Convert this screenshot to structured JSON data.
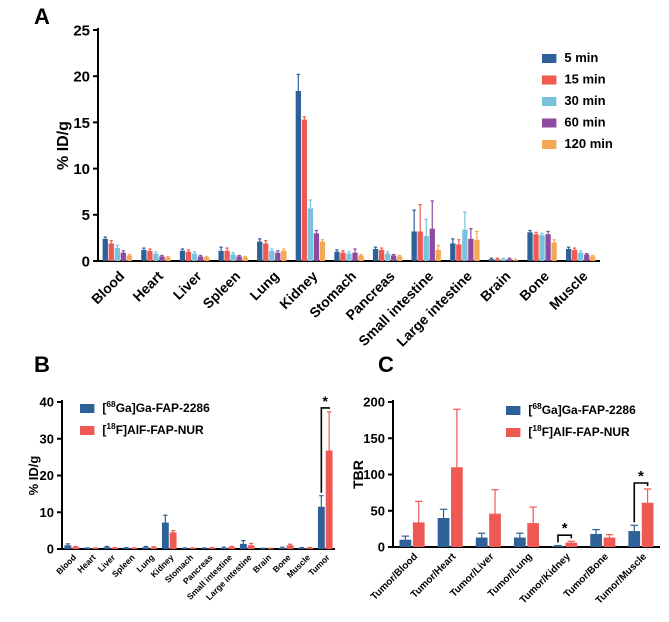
{
  "colors": {
    "c5": "#2e6197",
    "c15": "#ee5a53",
    "c30": "#79c2dd",
    "c60": "#8e4a9e",
    "c120": "#f3a856",
    "ga": "#2e6197",
    "alf": "#ee5a53"
  },
  "chart_data": [
    {
      "panel": "A",
      "type": "bar",
      "ylabel": "% ID/g",
      "ylim": [
        0,
        25
      ],
      "yticks": [
        0,
        5,
        10,
        15,
        20,
        25
      ],
      "legend_position": "top-right",
      "categories": [
        "Blood",
        "Heart",
        "Liver",
        "Spleen",
        "Lung",
        "Kidney",
        "Stomach",
        "Pancreas",
        "Small intestine",
        "Large intestine",
        "Brain",
        "Bone",
        "Muscle"
      ],
      "series": [
        {
          "name": "5 min",
          "color": "#2e6197",
          "values": [
            2.4,
            1.2,
            1.1,
            1.1,
            2.1,
            18.4,
            1.0,
            1.3,
            3.2,
            1.9,
            0.2,
            3.1,
            1.3
          ],
          "errors": [
            0.2,
            0.2,
            0.2,
            0.4,
            0.3,
            1.8,
            0.2,
            0.2,
            2.3,
            0.5,
            0.1,
            0.2,
            0.2
          ]
        },
        {
          "name": "15 min",
          "color": "#ee5a53",
          "values": [
            1.9,
            1.1,
            1.0,
            1.1,
            1.9,
            15.3,
            0.9,
            1.2,
            3.2,
            1.8,
            0.2,
            2.9,
            1.2
          ],
          "errors": [
            0.3,
            0.2,
            0.2,
            0.3,
            0.3,
            0.3,
            0.2,
            0.2,
            2.9,
            0.5,
            0.1,
            0.2,
            0.2
          ]
        },
        {
          "name": "30 min",
          "color": "#79c2dd",
          "values": [
            1.4,
            0.8,
            0.8,
            0.7,
            1.1,
            5.7,
            0.8,
            0.8,
            2.7,
            3.4,
            0.2,
            2.8,
            0.9
          ],
          "errors": [
            0.3,
            0.2,
            0.2,
            0.2,
            0.2,
            0.9,
            0.2,
            0.2,
            1.8,
            1.9,
            0.1,
            0.2,
            0.2
          ]
        },
        {
          "name": "60 min",
          "color": "#8e4a9e",
          "values": [
            0.9,
            0.5,
            0.5,
            0.5,
            0.9,
            3.0,
            0.9,
            0.6,
            3.5,
            2.4,
            0.2,
            2.9,
            0.7
          ],
          "errors": [
            0.2,
            0.1,
            0.1,
            0.1,
            0.2,
            0.3,
            0.4,
            0.1,
            3.0,
            1.1,
            0.1,
            0.3,
            0.1
          ]
        },
        {
          "name": "120 min",
          "color": "#f3a856",
          "values": [
            0.6,
            0.4,
            0.4,
            0.4,
            1.1,
            2.1,
            0.6,
            0.5,
            1.2,
            2.3,
            0.1,
            2.0,
            0.5
          ],
          "errors": [
            0.1,
            0.1,
            0.1,
            0.1,
            0.2,
            0.2,
            0.1,
            0.1,
            0.5,
            0.9,
            0.1,
            0.3,
            0.1
          ]
        }
      ]
    },
    {
      "panel": "B",
      "type": "bar",
      "ylabel": "% ID/g",
      "ylim": [
        0,
        40
      ],
      "yticks": [
        0,
        10,
        20,
        30,
        40
      ],
      "legend_position": "top-left",
      "categories": [
        "Blood",
        "Heart",
        "Liver",
        "Spleen",
        "Lung",
        "Kidney",
        "Stomach",
        "Pancreas",
        "Small intestine",
        "Large intestine",
        "Brain",
        "Bone",
        "Muscle",
        "Tumor"
      ],
      "series": [
        {
          "name": "[68Ga]Ga-FAP-2286",
          "color": "#2e6197",
          "values": [
            1.0,
            0.2,
            0.5,
            0.3,
            0.5,
            7.2,
            0.2,
            0.2,
            0.3,
            1.4,
            0.1,
            0.3,
            0.3,
            11.5
          ],
          "errors": [
            0.4,
            0.1,
            0.2,
            0.1,
            0.2,
            2.0,
            0.1,
            0.1,
            0.2,
            0.9,
            0.1,
            0.2,
            0.1,
            3.0
          ]
        },
        {
          "name": "[18F]AlF-FAP-NUR",
          "color": "#ee5a53",
          "values": [
            0.5,
            0.2,
            0.3,
            0.2,
            0.4,
            4.5,
            0.2,
            0.3,
            0.5,
            1.0,
            0.1,
            1.0,
            0.3,
            26.8
          ],
          "errors": [
            0.2,
            0.1,
            0.1,
            0.1,
            0.2,
            0.5,
            0.1,
            0.1,
            0.2,
            0.5,
            0.1,
            0.3,
            0.1,
            10.5
          ]
        }
      ],
      "annotations": [
        {
          "text": "*",
          "category": "Tumor"
        }
      ]
    },
    {
      "panel": "C",
      "type": "bar",
      "ylabel": "TBR",
      "ylim": [
        0,
        200
      ],
      "yticks": [
        0,
        50,
        100,
        150,
        200
      ],
      "legend_position": "top-right",
      "categories": [
        "Tumor/Blood",
        "Tumor/Heart",
        "Tumor/Liver",
        "Tumor/Lung",
        "Tumor/Kidney",
        "Tumor/Bone",
        "Tumor/Muscle"
      ],
      "series": [
        {
          "name": "[68Ga]Ga-FAP-2286",
          "color": "#2e6197",
          "values": [
            10,
            40,
            13,
            13,
            1.5,
            18,
            22
          ],
          "errors": [
            5,
            12,
            6,
            6,
            0.5,
            6,
            8
          ]
        },
        {
          "name": "[18F]AlF-FAP-NUR",
          "color": "#ee5a53",
          "values": [
            34,
            110,
            46,
            33,
            6,
            13,
            61
          ],
          "errors": [
            29,
            80,
            33,
            22,
            2,
            4,
            19
          ]
        }
      ],
      "annotations": [
        {
          "text": "*",
          "category": "Tumor/Kidney"
        },
        {
          "text": "*",
          "category": "Tumor/Muscle"
        }
      ]
    }
  ],
  "panel_labels": {
    "a": "A",
    "b": "B",
    "c": "C"
  }
}
